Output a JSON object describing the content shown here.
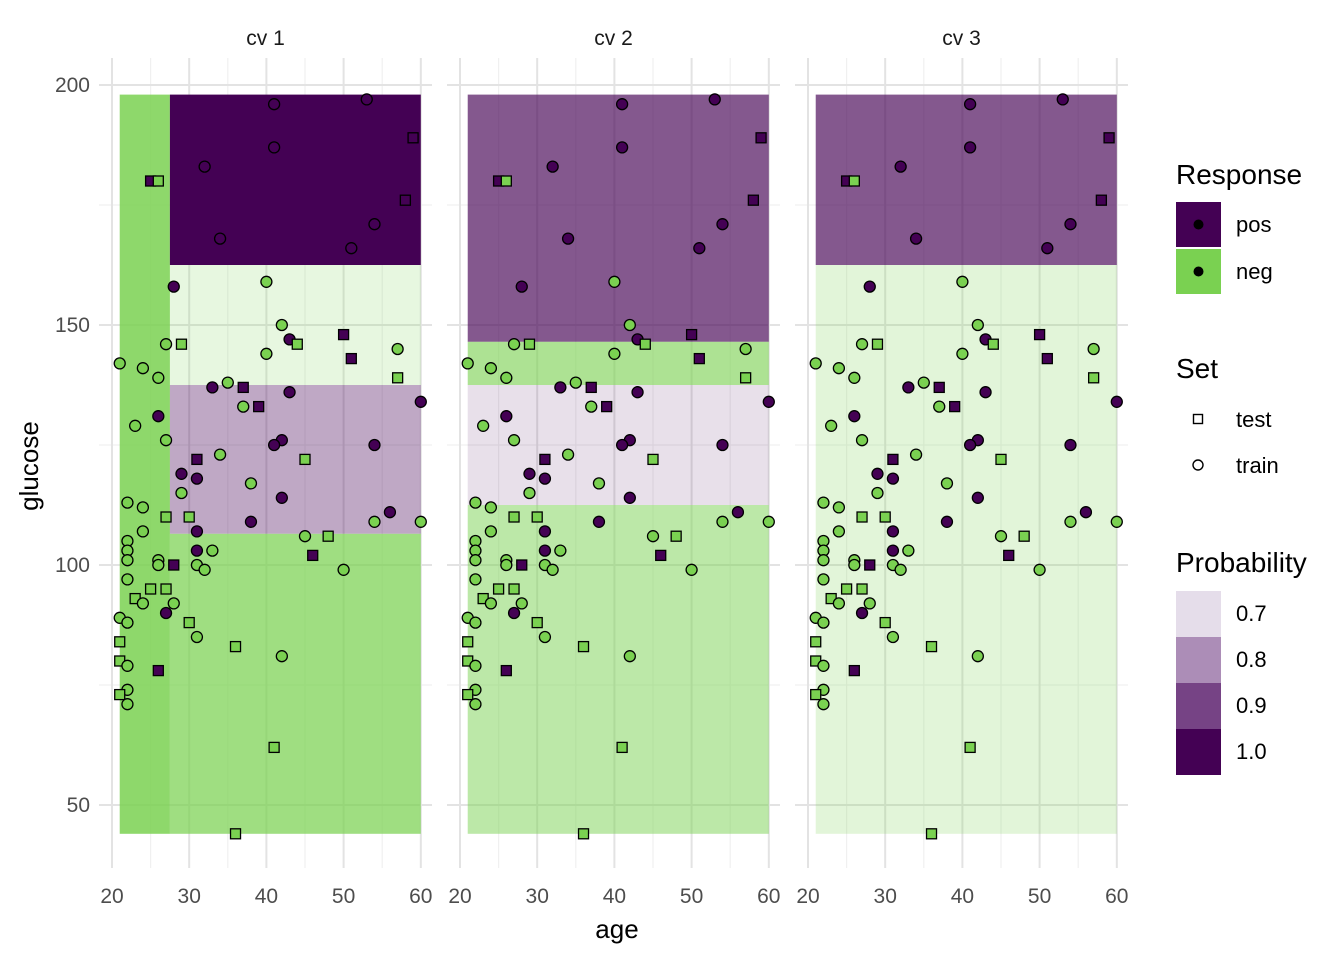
{
  "chart_data": {
    "type": "scatter",
    "xlabel": "age",
    "ylabel": "glucose",
    "xlim": [
      20,
      60
    ],
    "ylim": [
      44,
      198
    ],
    "x_ticks": [
      20,
      30,
      40,
      50,
      60
    ],
    "y_ticks": [
      50,
      100,
      150,
      200
    ],
    "colors": {
      "pos": "#440154",
      "neg": "#7AD151"
    },
    "panels": [
      {
        "title": "cv 1",
        "regions": [
          {
            "x": [
              21,
              27.5
            ],
            "y": [
              44,
              198
            ],
            "color": "#7AD151",
            "alpha": 0.85
          },
          {
            "x": [
              27.5,
              60
            ],
            "y": [
              162.5,
              198
            ],
            "color": "#440154",
            "alpha": 1.0
          },
          {
            "x": [
              27.5,
              60
            ],
            "y": [
              137.5,
              162.5
            ],
            "color": "#7AD151",
            "alpha": 0.18
          },
          {
            "x": [
              27.5,
              60
            ],
            "y": [
              106.5,
              137.5
            ],
            "color": "#440154",
            "alpha": 0.34
          },
          {
            "x": [
              27.5,
              60
            ],
            "y": [
              44,
              106.5
            ],
            "color": "#7AD151",
            "alpha": 0.72
          }
        ]
      },
      {
        "title": "cv 2",
        "regions": [
          {
            "x": [
              21,
              60
            ],
            "y": [
              146.5,
              198
            ],
            "color": "#440154",
            "alpha": 0.66
          },
          {
            "x": [
              21,
              60
            ],
            "y": [
              137.5,
              146.5
            ],
            "color": "#7AD151",
            "alpha": 0.62
          },
          {
            "x": [
              21,
              60
            ],
            "y": [
              112.5,
              137.5
            ],
            "color": "#440154",
            "alpha": 0.12
          },
          {
            "x": [
              21,
              60
            ],
            "y": [
              44,
              112.5
            ],
            "color": "#7AD151",
            "alpha": 0.5
          }
        ]
      },
      {
        "title": "cv 3",
        "regions": [
          {
            "x": [
              21,
              60
            ],
            "y": [
              162.5,
              198
            ],
            "color": "#440154",
            "alpha": 0.66
          },
          {
            "x": [
              21,
              60
            ],
            "y": [
              44,
              162.5
            ],
            "color": "#7AD151",
            "alpha": 0.22
          }
        ]
      }
    ],
    "points": [
      {
        "age": 25,
        "glucose": 180,
        "response": "pos",
        "set": "test"
      },
      {
        "age": 26,
        "glucose": 180,
        "response": "neg",
        "set": "test"
      },
      {
        "age": 41,
        "glucose": 196,
        "response": "pos",
        "set": "train"
      },
      {
        "age": 53,
        "glucose": 197,
        "response": "pos",
        "set": "train"
      },
      {
        "age": 59,
        "glucose": 189,
        "response": "pos",
        "set": "test"
      },
      {
        "age": 32,
        "glucose": 183,
        "response": "pos",
        "set": "train"
      },
      {
        "age": 41,
        "glucose": 187,
        "response": "pos",
        "set": "train"
      },
      {
        "age": 58,
        "glucose": 176,
        "response": "pos",
        "set": "test"
      },
      {
        "age": 54,
        "glucose": 171,
        "response": "pos",
        "set": "train"
      },
      {
        "age": 34,
        "glucose": 168,
        "response": "pos",
        "set": "train"
      },
      {
        "age": 51,
        "glucose": 166,
        "response": "pos",
        "set": "train"
      },
      {
        "age": 40,
        "glucose": 159,
        "response": "neg",
        "set": "train"
      },
      {
        "age": 28,
        "glucose": 158,
        "response": "pos",
        "set": "train"
      },
      {
        "age": 42,
        "glucose": 150,
        "response": "neg",
        "set": "train"
      },
      {
        "age": 50,
        "glucose": 148,
        "response": "pos",
        "set": "test"
      },
      {
        "age": 43,
        "glucose": 147,
        "response": "pos",
        "set": "train"
      },
      {
        "age": 44,
        "glucose": 146,
        "response": "neg",
        "set": "test"
      },
      {
        "age": 27,
        "glucose": 146,
        "response": "neg",
        "set": "train"
      },
      {
        "age": 29,
        "glucose": 146,
        "response": "neg",
        "set": "test"
      },
      {
        "age": 57,
        "glucose": 145,
        "response": "neg",
        "set": "train"
      },
      {
        "age": 40,
        "glucose": 144,
        "response": "neg",
        "set": "train"
      },
      {
        "age": 51,
        "glucose": 143,
        "response": "pos",
        "set": "test"
      },
      {
        "age": 21,
        "glucose": 142,
        "response": "neg",
        "set": "train"
      },
      {
        "age": 24,
        "glucose": 141,
        "response": "neg",
        "set": "train"
      },
      {
        "age": 26,
        "glucose": 139,
        "response": "neg",
        "set": "train"
      },
      {
        "age": 57,
        "glucose": 139,
        "response": "neg",
        "set": "test"
      },
      {
        "age": 35,
        "glucose": 138,
        "response": "neg",
        "set": "train"
      },
      {
        "age": 33,
        "glucose": 137,
        "response": "pos",
        "set": "train"
      },
      {
        "age": 37,
        "glucose": 137,
        "response": "pos",
        "set": "test"
      },
      {
        "age": 43,
        "glucose": 136,
        "response": "pos",
        "set": "train"
      },
      {
        "age": 60,
        "glucose": 134,
        "response": "pos",
        "set": "train"
      },
      {
        "age": 37,
        "glucose": 133,
        "response": "neg",
        "set": "train"
      },
      {
        "age": 39,
        "glucose": 133,
        "response": "pos",
        "set": "test"
      },
      {
        "age": 26,
        "glucose": 131,
        "response": "pos",
        "set": "train"
      },
      {
        "age": 23,
        "glucose": 129,
        "response": "neg",
        "set": "train"
      },
      {
        "age": 27,
        "glucose": 126,
        "response": "neg",
        "set": "train"
      },
      {
        "age": 42,
        "glucose": 126,
        "response": "pos",
        "set": "train"
      },
      {
        "age": 41,
        "glucose": 125,
        "response": "pos",
        "set": "train"
      },
      {
        "age": 54,
        "glucose": 125,
        "response": "pos",
        "set": "train"
      },
      {
        "age": 34,
        "glucose": 123,
        "response": "neg",
        "set": "train"
      },
      {
        "age": 31,
        "glucose": 122,
        "response": "pos",
        "set": "test"
      },
      {
        "age": 45,
        "glucose": 122,
        "response": "neg",
        "set": "test"
      },
      {
        "age": 29,
        "glucose": 119,
        "response": "pos",
        "set": "train"
      },
      {
        "age": 31,
        "glucose": 118,
        "response": "pos",
        "set": "train"
      },
      {
        "age": 38,
        "glucose": 117,
        "response": "neg",
        "set": "train"
      },
      {
        "age": 29,
        "glucose": 115,
        "response": "neg",
        "set": "train"
      },
      {
        "age": 42,
        "glucose": 114,
        "response": "pos",
        "set": "train"
      },
      {
        "age": 22,
        "glucose": 113,
        "response": "neg",
        "set": "train"
      },
      {
        "age": 24,
        "glucose": 112,
        "response": "neg",
        "set": "train"
      },
      {
        "age": 56,
        "glucose": 111,
        "response": "pos",
        "set": "train"
      },
      {
        "age": 27,
        "glucose": 110,
        "response": "neg",
        "set": "test"
      },
      {
        "age": 30,
        "glucose": 110,
        "response": "neg",
        "set": "test"
      },
      {
        "age": 38,
        "glucose": 109,
        "response": "pos",
        "set": "train"
      },
      {
        "age": 54,
        "glucose": 109,
        "response": "neg",
        "set": "train"
      },
      {
        "age": 60,
        "glucose": 109,
        "response": "neg",
        "set": "train"
      },
      {
        "age": 31,
        "glucose": 107,
        "response": "pos",
        "set": "train"
      },
      {
        "age": 24,
        "glucose": 107,
        "response": "neg",
        "set": "train"
      },
      {
        "age": 45,
        "glucose": 106,
        "response": "neg",
        "set": "train"
      },
      {
        "age": 48,
        "glucose": 106,
        "response": "neg",
        "set": "test"
      },
      {
        "age": 22,
        "glucose": 105,
        "response": "neg",
        "set": "train"
      },
      {
        "age": 22,
        "glucose": 103,
        "response": "neg",
        "set": "train"
      },
      {
        "age": 31,
        "glucose": 103,
        "response": "pos",
        "set": "train"
      },
      {
        "age": 33,
        "glucose": 103,
        "response": "neg",
        "set": "train"
      },
      {
        "age": 46,
        "glucose": 102,
        "response": "pos",
        "set": "test"
      },
      {
        "age": 22,
        "glucose": 101,
        "response": "neg",
        "set": "train"
      },
      {
        "age": 26,
        "glucose": 101,
        "response": "neg",
        "set": "train"
      },
      {
        "age": 26,
        "glucose": 100,
        "response": "neg",
        "set": "train"
      },
      {
        "age": 28,
        "glucose": 100,
        "response": "pos",
        "set": "test"
      },
      {
        "age": 31,
        "glucose": 100,
        "response": "neg",
        "set": "train"
      },
      {
        "age": 32,
        "glucose": 99,
        "response": "neg",
        "set": "train"
      },
      {
        "age": 50,
        "glucose": 99,
        "response": "neg",
        "set": "train"
      },
      {
        "age": 22,
        "glucose": 97,
        "response": "neg",
        "set": "train"
      },
      {
        "age": 25,
        "glucose": 95,
        "response": "neg",
        "set": "test"
      },
      {
        "age": 27,
        "glucose": 95,
        "response": "neg",
        "set": "test"
      },
      {
        "age": 23,
        "glucose": 93,
        "response": "neg",
        "set": "test"
      },
      {
        "age": 24,
        "glucose": 92,
        "response": "neg",
        "set": "train"
      },
      {
        "age": 28,
        "glucose": 92,
        "response": "neg",
        "set": "train"
      },
      {
        "age": 27,
        "glucose": 90,
        "response": "pos",
        "set": "train"
      },
      {
        "age": 21,
        "glucose": 89,
        "response": "neg",
        "set": "train"
      },
      {
        "age": 22,
        "glucose": 88,
        "response": "neg",
        "set": "train"
      },
      {
        "age": 30,
        "glucose": 88,
        "response": "neg",
        "set": "test"
      },
      {
        "age": 31,
        "glucose": 85,
        "response": "neg",
        "set": "train"
      },
      {
        "age": 21,
        "glucose": 84,
        "response": "neg",
        "set": "test"
      },
      {
        "age": 36,
        "glucose": 83,
        "response": "neg",
        "set": "test"
      },
      {
        "age": 42,
        "glucose": 81,
        "response": "neg",
        "set": "train"
      },
      {
        "age": 21,
        "glucose": 80,
        "response": "neg",
        "set": "test"
      },
      {
        "age": 22,
        "glucose": 79,
        "response": "neg",
        "set": "train"
      },
      {
        "age": 26,
        "glucose": 78,
        "response": "pos",
        "set": "test"
      },
      {
        "age": 22,
        "glucose": 74,
        "response": "neg",
        "set": "train"
      },
      {
        "age": 21,
        "glucose": 73,
        "response": "neg",
        "set": "test"
      },
      {
        "age": 22,
        "glucose": 71,
        "response": "neg",
        "set": "train"
      },
      {
        "age": 41,
        "glucose": 62,
        "response": "neg",
        "set": "test"
      },
      {
        "age": 36,
        "glucose": 44,
        "response": "neg",
        "set": "test"
      }
    ],
    "legend": {
      "response": {
        "title": "Response",
        "items": [
          {
            "label": "pos",
            "color": "#440154"
          },
          {
            "label": "neg",
            "color": "#7AD151"
          }
        ]
      },
      "set": {
        "title": "Set",
        "items": [
          {
            "label": "test",
            "shape": "square"
          },
          {
            "label": "train",
            "shape": "circle"
          }
        ]
      },
      "probability": {
        "title": "Probability",
        "items": [
          {
            "label": "0.7",
            "color": "#E5DDEA"
          },
          {
            "label": "0.8",
            "color": "#AC8DB7"
          },
          {
            "label": "0.9",
            "color": "#764385"
          },
          {
            "label": "1.0",
            "color": "#440154"
          }
        ]
      }
    }
  }
}
